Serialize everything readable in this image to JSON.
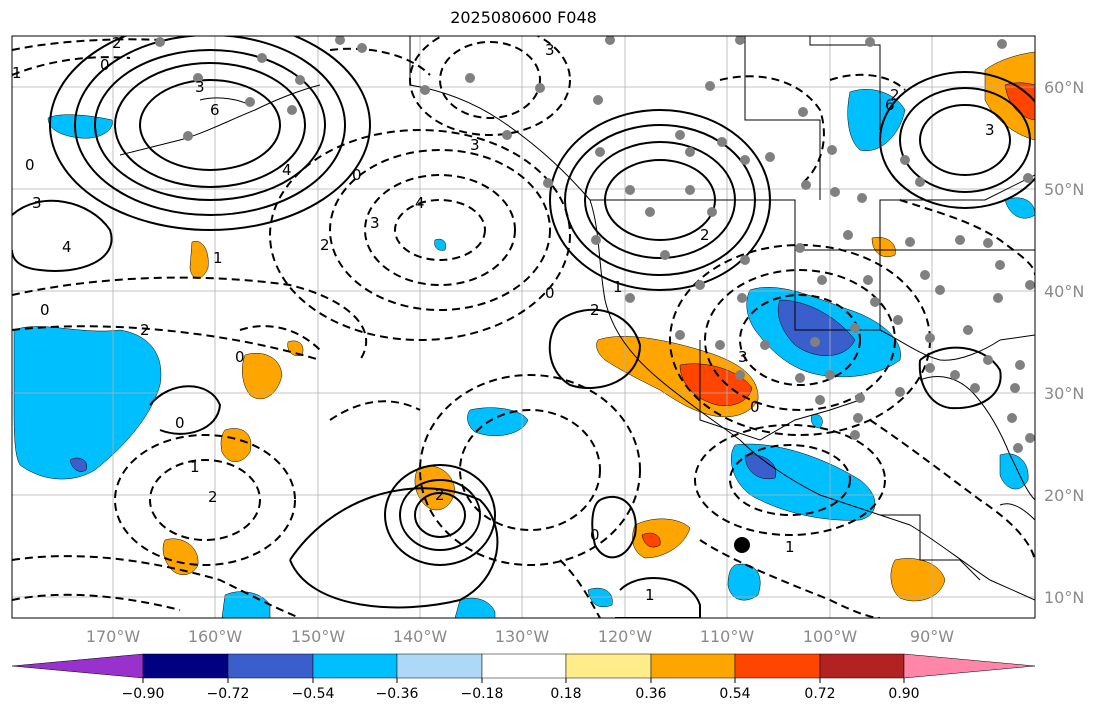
{
  "title": "2025080600 F048",
  "map": {
    "lat_labels": [
      "60°N",
      "50°N",
      "40°N",
      "30°N",
      "20°N",
      "10°N"
    ],
    "lon_labels": [
      "170°W",
      "160°W",
      "150°W",
      "140°W",
      "130°W",
      "120°W",
      "110°W",
      "100°W",
      "90°W"
    ],
    "contour_labels": [
      "2",
      "0",
      "1",
      "3",
      "6",
      "4",
      "0",
      "3",
      "4",
      "0",
      "2",
      "1",
      "4",
      "3",
      "0",
      "2",
      "3",
      "3",
      "0",
      "2",
      "1",
      "2",
      "0",
      "1",
      "2",
      "0",
      "2",
      "0",
      "1",
      "3",
      "2",
      "6",
      "3",
      "0",
      "1"
    ]
  },
  "colorbar": {
    "tick_labels": [
      "−0.90",
      "−0.72",
      "−0.54",
      "−0.36",
      "−0.18",
      "0.18",
      "0.36",
      "0.54",
      "0.72",
      "0.90"
    ],
    "colors": [
      "#9932cc",
      "#000080",
      "#3a5fcd",
      "#00bfff",
      "#add8f7",
      "#ffffff",
      "#ffec8b",
      "#ffa500",
      "#ff4500",
      "#b22222",
      "#ff86a8"
    ]
  }
}
